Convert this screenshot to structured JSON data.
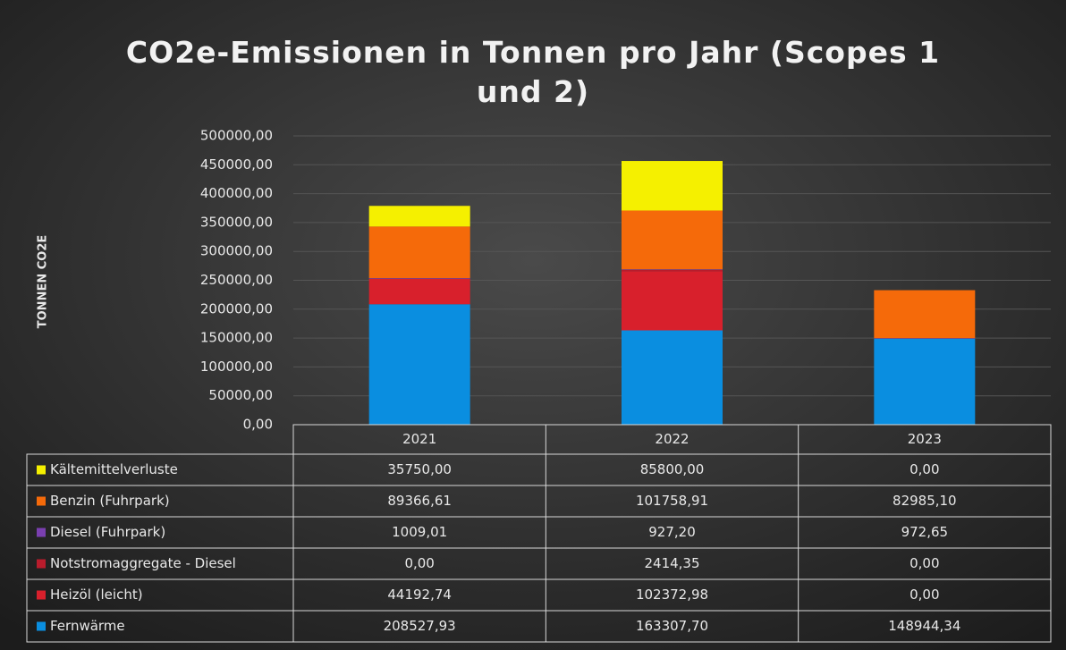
{
  "chart_data": {
    "type": "stacked_bar",
    "title": "CO2e-Emissionen in Tonnen pro Jahr (Scopes 1 und 2)",
    "y_axis_label": "TONNEN CO2E",
    "categories": [
      "2021",
      "2022",
      "2023"
    ],
    "series": [
      {
        "name": "Kältemittelverluste",
        "color": "#f5f000",
        "values": [
          35750.0,
          85800.0,
          0.0
        ],
        "value_labels": [
          "35750,00",
          "85800,00",
          "0,00"
        ]
      },
      {
        "name": "Benzin (Fuhrpark)",
        "color": "#f56a0a",
        "values": [
          89366.61,
          101758.91,
          82985.1
        ],
        "value_labels": [
          "89366,61",
          "101758,91",
          "82985,10"
        ]
      },
      {
        "name": "Diesel (Fuhrpark)",
        "color": "#7a3fb0",
        "values": [
          1009.01,
          927.2,
          972.65
        ],
        "value_labels": [
          "1009,01",
          "927,20",
          "972,65"
        ]
      },
      {
        "name": "Notstromaggregate - Diesel",
        "color": "#b81c2c",
        "values": [
          0.0,
          2414.35,
          0.0
        ],
        "value_labels": [
          "0,00",
          "2414,35",
          "0,00"
        ]
      },
      {
        "name": "Heizöl (leicht)",
        "color": "#d8202c",
        "values": [
          44192.74,
          102372.98,
          0.0
        ],
        "value_labels": [
          "44192,74",
          "102372,98",
          "0,00"
        ]
      },
      {
        "name": "Fernwärme",
        "color": "#0a8ee0",
        "values": [
          208527.93,
          163307.7,
          148944.34
        ],
        "value_labels": [
          "208527,93",
          "163307,70",
          "148944,34"
        ]
      }
    ],
    "ylim": [
      0,
      500000
    ],
    "yticks": [
      {
        "value": 0,
        "label": "0,00"
      },
      {
        "value": 50000,
        "label": "50000,00"
      },
      {
        "value": 100000,
        "label": "100000,00"
      },
      {
        "value": 150000,
        "label": "150000,00"
      },
      {
        "value": 200000,
        "label": "200000,00"
      },
      {
        "value": 250000,
        "label": "250000,00"
      },
      {
        "value": 300000,
        "label": "300000,00"
      },
      {
        "value": 350000,
        "label": "350000,00"
      },
      {
        "value": 400000,
        "label": "400000,00"
      },
      {
        "value": 450000,
        "label": "450000,00"
      },
      {
        "value": 500000,
        "label": "500000,00"
      }
    ],
    "grid": true
  }
}
